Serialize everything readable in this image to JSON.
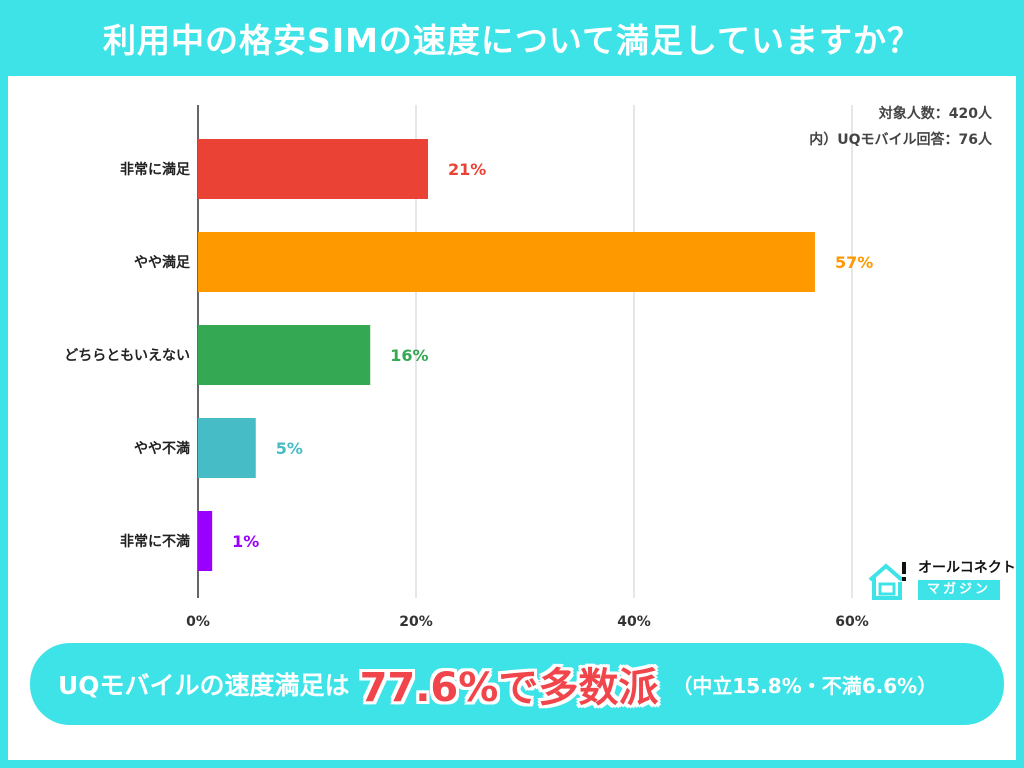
{
  "title": "利用中の格安SIMの速度について満足していますか？",
  "notes": {
    "total": "対象人数：420人",
    "uq": "内）UQモバイル回答：76人"
  },
  "logo": {
    "line1": "オールコネクト",
    "line2": "マガジン"
  },
  "summary": {
    "lead": "UQモバイルの速度満足は",
    "highlight": "77.6%で多数派",
    "sub": "（中立15.8%・不満6.6%）"
  },
  "chart_data": {
    "type": "bar",
    "orientation": "horizontal",
    "categories": [
      "非常に満足",
      "やや満足",
      "どちらともいえない",
      "やや不満",
      "非常に不満"
    ],
    "values": [
      21.1,
      56.6,
      15.8,
      5.3,
      1.3
    ],
    "data_labels": [
      "21%",
      "57%",
      "16%",
      "5%",
      "1%"
    ],
    "colors": [
      "#ea4335",
      "#ff9900",
      "#34a853",
      "#46bdc6",
      "#9900ff"
    ],
    "xlim": [
      0,
      60
    ],
    "xticks": [
      "0%",
      "20%",
      "40%",
      "60%"
    ],
    "grid": true
  }
}
